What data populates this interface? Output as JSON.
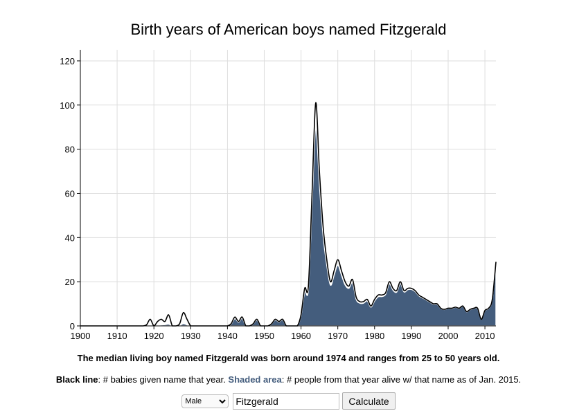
{
  "chart_data": {
    "type": "area",
    "title": "Birth years of American boys named Fitzgerald",
    "xlim": [
      1900,
      2013
    ],
    "ylim": [
      0,
      125
    ],
    "x_ticks": [
      1900,
      1910,
      1920,
      1930,
      1940,
      1950,
      1960,
      1970,
      1980,
      1990,
      2000,
      2010
    ],
    "y_ticks": [
      0,
      20,
      40,
      60,
      80,
      100,
      120
    ],
    "grid": true,
    "colors": {
      "shaded": "#445d7d",
      "line": "#000000",
      "grid": "#dddddd"
    },
    "years": [
      1900,
      1901,
      1902,
      1903,
      1904,
      1905,
      1906,
      1907,
      1908,
      1909,
      1910,
      1911,
      1912,
      1913,
      1914,
      1915,
      1916,
      1917,
      1918,
      1919,
      1920,
      1921,
      1922,
      1923,
      1924,
      1925,
      1926,
      1927,
      1928,
      1929,
      1930,
      1931,
      1932,
      1933,
      1934,
      1935,
      1936,
      1937,
      1938,
      1939,
      1940,
      1941,
      1942,
      1943,
      1944,
      1945,
      1946,
      1947,
      1948,
      1949,
      1950,
      1951,
      1952,
      1953,
      1954,
      1955,
      1956,
      1957,
      1958,
      1959,
      1960,
      1961,
      1962,
      1963,
      1964,
      1965,
      1966,
      1967,
      1968,
      1969,
      1970,
      1971,
      1972,
      1973,
      1974,
      1975,
      1976,
      1977,
      1978,
      1979,
      1980,
      1981,
      1982,
      1983,
      1984,
      1985,
      1986,
      1987,
      1988,
      1989,
      1990,
      1991,
      1992,
      1993,
      1994,
      1995,
      1996,
      1997,
      1998,
      1999,
      2000,
      2001,
      2002,
      2003,
      2004,
      2005,
      2006,
      2007,
      2008,
      2009,
      2010,
      2011,
      2012,
      2013
    ],
    "series": [
      {
        "name": "# babies given name that year",
        "style": "line",
        "values": [
          0,
          0,
          0,
          0,
          0,
          0,
          0,
          0,
          0,
          0,
          0,
          0,
          0,
          0,
          0,
          0,
          0,
          0,
          0.5,
          3,
          0,
          2,
          3,
          2,
          5,
          0,
          0,
          1,
          6,
          3,
          0,
          0,
          0,
          0,
          0,
          0,
          0,
          0,
          0,
          0,
          0,
          1,
          4,
          2,
          4,
          0,
          0,
          1,
          3,
          0,
          0,
          0,
          1,
          3,
          2,
          3,
          0,
          0,
          0,
          0,
          5,
          17,
          18,
          60,
          101,
          70,
          45,
          30,
          20,
          25,
          30,
          25,
          20,
          18,
          21,
          13,
          11,
          11,
          12,
          9,
          12,
          14,
          14,
          15,
          20,
          17,
          16,
          20,
          16,
          17,
          17,
          16,
          14,
          13,
          12,
          11,
          10,
          10,
          8,
          7.5,
          8,
          8,
          8.5,
          8,
          9,
          6.5,
          7.5,
          8,
          8,
          3,
          7,
          8,
          12,
          29
        ]
      },
      {
        "name": "# people from that year alive w/ that name as of Jan. 2015",
        "style": "area",
        "values": [
          0,
          0,
          0,
          0,
          0,
          0,
          0,
          0,
          0,
          0,
          0,
          0,
          0,
          0,
          0,
          0,
          0,
          0,
          0,
          0.2,
          0,
          0.3,
          0.5,
          0.6,
          0.8,
          0,
          0,
          0.2,
          1,
          0.5,
          0,
          0,
          0,
          0,
          0,
          0,
          0,
          0,
          0,
          0,
          0,
          0.8,
          3.3,
          1.7,
          3.4,
          0,
          0,
          0.9,
          2.6,
          0,
          0,
          0,
          0.9,
          2.7,
          1.8,
          2.7,
          0,
          0,
          0,
          0,
          4.5,
          15.5,
          16.5,
          55,
          90,
          64,
          41,
          27.5,
          18.5,
          23,
          27.5,
          23,
          18.5,
          17,
          19.5,
          12,
          10.3,
          10.3,
          11.3,
          8.5,
          11.3,
          13.2,
          13.3,
          14.3,
          19,
          16.2,
          15.3,
          19.2,
          15.4,
          16.4,
          16.5,
          15.6,
          13.7,
          12.7,
          11.8,
          10.8,
          9.8,
          9.8,
          7.9,
          7.4,
          7.9,
          7.9,
          8.4,
          7.9,
          8.9,
          6.4,
          7.4,
          7.9,
          7.9,
          3,
          6.9,
          7.9,
          11.9,
          28.8
        ]
      }
    ]
  },
  "summary": "The median living boy named Fitzgerald was born around 1974 and ranges from 25 to 50 years old.",
  "legend": {
    "line_label": "Black line",
    "line_desc": ": # babies given name that year. ",
    "shade_label": "Shaded area",
    "shade_desc": ": # people from that year alive w/ that name as of Jan. 2015."
  },
  "controls": {
    "sex_selected": "Male",
    "name_value": "Fitzgerald",
    "calculate_label": "Calculate"
  }
}
